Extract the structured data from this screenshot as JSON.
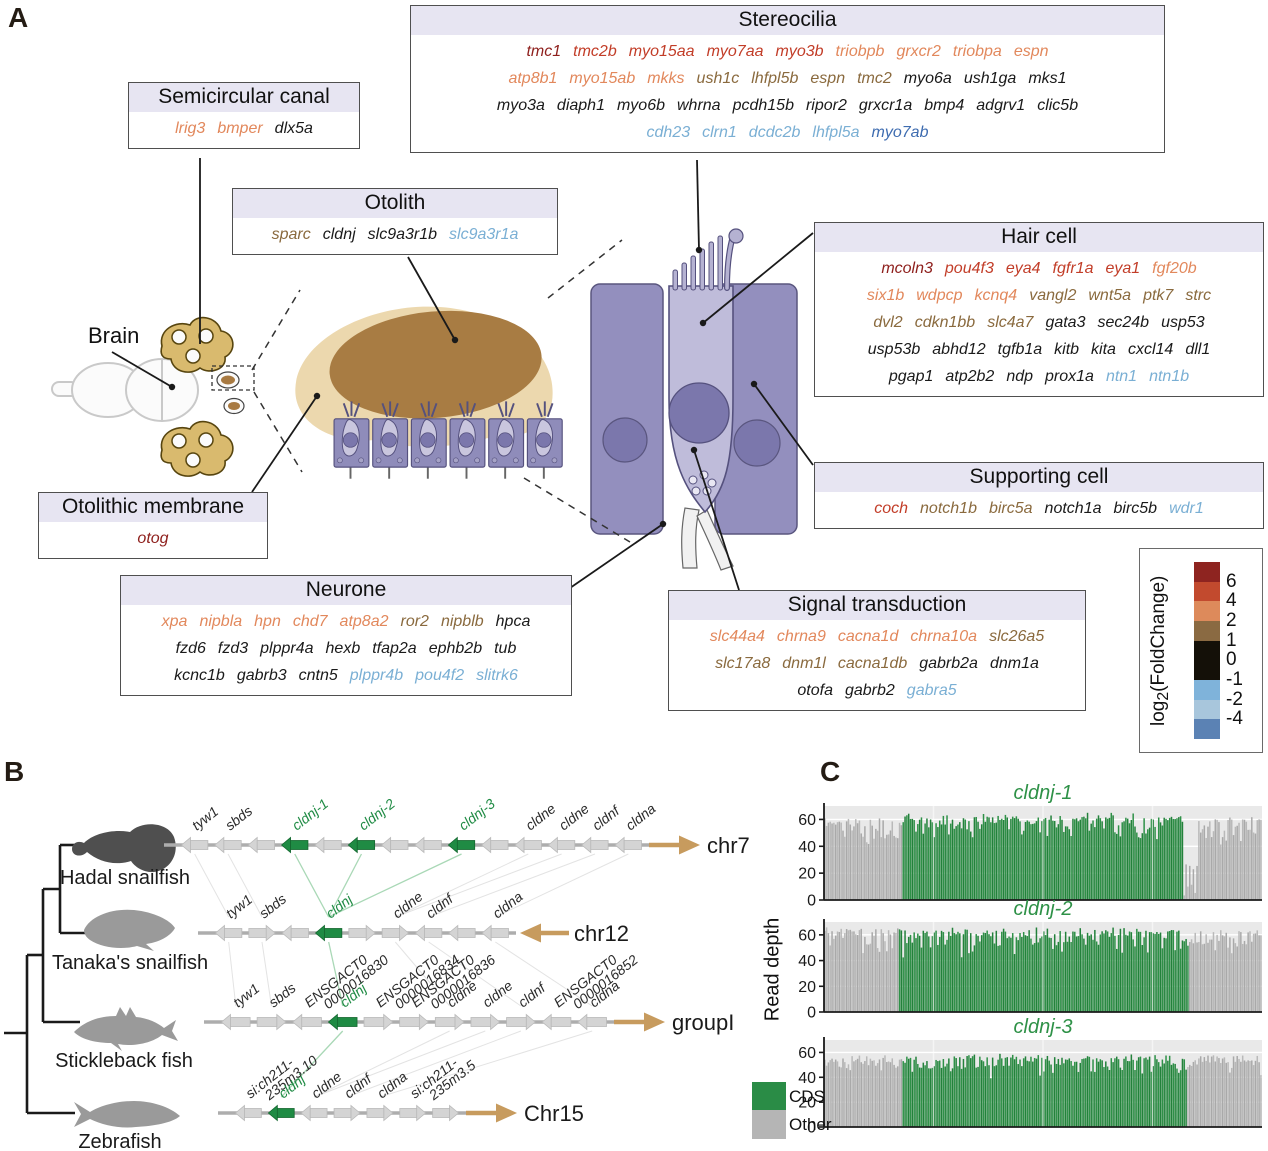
{
  "panel_a": {
    "label": "A",
    "palette": {
      "darkred": "#8e1f1c",
      "red": "#c23d28",
      "orange": "#e2885c",
      "brown": "#8a6a3e",
      "black": "#1a1a1a",
      "lightblue": "#7aafd4",
      "medblue": "#3e6cb0"
    },
    "brain_label": "Brain",
    "boxes": [
      {
        "id": "stereocilia",
        "title": "Stereocilia",
        "rows": [
          [
            [
              "tmc1",
              "darkred"
            ],
            [
              "tmc2b",
              "red"
            ],
            [
              "myo15aa",
              "red"
            ],
            [
              "myo7aa",
              "red"
            ],
            [
              "myo3b",
              "red"
            ],
            [
              "triobpb",
              "orange"
            ],
            [
              "grxcr2",
              "orange"
            ],
            [
              "triobpa",
              "orange"
            ],
            [
              "espn",
              "orange"
            ]
          ],
          [
            [
              "atp8b1",
              "orange"
            ],
            [
              "myo15ab",
              "orange"
            ],
            [
              "mkks",
              "orange"
            ],
            [
              "ush1c",
              "brown"
            ],
            [
              "lhfpl5b",
              "brown"
            ],
            [
              "espn",
              "brown"
            ],
            [
              "tmc2",
              "brown"
            ],
            [
              "myo6a",
              "black"
            ],
            [
              "ush1ga",
              "black"
            ],
            [
              "mks1",
              "black"
            ]
          ],
          [
            [
              "myo3a",
              "black"
            ],
            [
              "diaph1",
              "black"
            ],
            [
              "myo6b",
              "black"
            ],
            [
              "whrna",
              "black"
            ],
            [
              "pcdh15b",
              "black"
            ],
            [
              "ripor2",
              "black"
            ],
            [
              "grxcr1a",
              "black"
            ],
            [
              "bmp4",
              "black"
            ],
            [
              "adgrv1",
              "black"
            ],
            [
              "clic5b",
              "black"
            ]
          ],
          [
            [
              "cdh23",
              "lightblue"
            ],
            [
              "clrn1",
              "lightblue"
            ],
            [
              "dcdc2b",
              "lightblue"
            ],
            [
              "lhfpl5a",
              "lightblue"
            ],
            [
              "myo7ab",
              "medblue"
            ]
          ]
        ]
      },
      {
        "id": "semicircular",
        "title": "Semicircular canal",
        "rows": [
          [
            [
              "lrig3",
              "orange"
            ],
            [
              "bmper",
              "orange"
            ],
            [
              "dlx5a",
              "black"
            ]
          ]
        ]
      },
      {
        "id": "otolith",
        "title": "Otolith",
        "rows": [
          [
            [
              "sparc",
              "brown"
            ],
            [
              "cldnj",
              "black"
            ],
            [
              "slc9a3r1b",
              "black"
            ],
            [
              "slc9a3r1a",
              "lightblue"
            ]
          ]
        ]
      },
      {
        "id": "haircell",
        "title": "Hair cell",
        "rows": [
          [
            [
              "mcoln3",
              "darkred"
            ],
            [
              "pou4f3",
              "red"
            ],
            [
              "eya4",
              "red"
            ],
            [
              "fgfr1a",
              "red"
            ],
            [
              "eya1",
              "red"
            ],
            [
              "fgf20b",
              "orange"
            ]
          ],
          [
            [
              "six1b",
              "orange"
            ],
            [
              "wdpcp",
              "orange"
            ],
            [
              "kcnq4",
              "orange"
            ],
            [
              "vangl2",
              "brown"
            ],
            [
              "wnt5a",
              "brown"
            ],
            [
              "ptk7",
              "brown"
            ],
            [
              "strc",
              "brown"
            ]
          ],
          [
            [
              "dvl2",
              "brown"
            ],
            [
              "cdkn1bb",
              "brown"
            ],
            [
              "slc4a7",
              "brown"
            ],
            [
              "gata3",
              "black"
            ],
            [
              "sec24b",
              "black"
            ],
            [
              "usp53",
              "black"
            ]
          ],
          [
            [
              "usp53b",
              "black"
            ],
            [
              "abhd12",
              "black"
            ],
            [
              "tgfb1a",
              "black"
            ],
            [
              "kitb",
              "black"
            ],
            [
              "kita",
              "black"
            ],
            [
              "cxcl14",
              "black"
            ],
            [
              "dll1",
              "black"
            ]
          ],
          [
            [
              "pgap1",
              "black"
            ],
            [
              "atp2b2",
              "black"
            ],
            [
              "ndp",
              "black"
            ],
            [
              "prox1a",
              "black"
            ],
            [
              "ntn1",
              "lightblue"
            ],
            [
              "ntn1b",
              "lightblue"
            ]
          ]
        ]
      },
      {
        "id": "supporting",
        "title": "Supporting cell",
        "rows": [
          [
            [
              "coch",
              "red"
            ],
            [
              "notch1b",
              "brown"
            ],
            [
              "birc5a",
              "brown"
            ],
            [
              "notch1a",
              "black"
            ],
            [
              "birc5b",
              "black"
            ],
            [
              "wdr1",
              "lightblue"
            ]
          ]
        ]
      },
      {
        "id": "otolithic",
        "title": "Otolithic membrane",
        "rows": [
          [
            [
              "otog",
              "darkred"
            ]
          ]
        ]
      },
      {
        "id": "neurone",
        "title": "Neurone",
        "rows": [
          [
            [
              "xpa",
              "orange"
            ],
            [
              "nipbla",
              "orange"
            ],
            [
              "hpn",
              "orange"
            ],
            [
              "chd7",
              "orange"
            ],
            [
              "atp8a2",
              "orange"
            ],
            [
              "ror2",
              "brown"
            ],
            [
              "nipblb",
              "brown"
            ],
            [
              "hpca",
              "black"
            ]
          ],
          [
            [
              "fzd6",
              "black"
            ],
            [
              "fzd3",
              "black"
            ],
            [
              "plppr4a",
              "black"
            ],
            [
              "hexb",
              "black"
            ],
            [
              "tfap2a",
              "black"
            ],
            [
              "ephb2b",
              "black"
            ],
            [
              "tub",
              "black"
            ]
          ],
          [
            [
              "kcnc1b",
              "black"
            ],
            [
              "gabrb3",
              "black"
            ],
            [
              "cntn5",
              "black"
            ],
            [
              "plppr4b",
              "lightblue"
            ],
            [
              "pou4f2",
              "lightblue"
            ],
            [
              "slitrk6",
              "lightblue"
            ]
          ]
        ]
      },
      {
        "id": "signal",
        "title": "Signal transduction",
        "rows": [
          [
            [
              "slc44a4",
              "orange"
            ],
            [
              "chrna9",
              "orange"
            ],
            [
              "cacna1d",
              "orange"
            ],
            [
              "chrna10a",
              "orange"
            ],
            [
              "slc26a5",
              "brown"
            ]
          ],
          [
            [
              "slc17a8",
              "brown"
            ],
            [
              "dnm1l",
              "brown"
            ],
            [
              "cacna1db",
              "brown"
            ],
            [
              "gabrb2a",
              "black"
            ],
            [
              "dnm1a",
              "black"
            ]
          ],
          [
            [
              "otofa",
              "black"
            ],
            [
              "gabrb2",
              "black"
            ],
            [
              "gabra5",
              "lightblue"
            ]
          ]
        ]
      }
    ],
    "colorbar": {
      "label_prefix": "log",
      "label_sub": "2",
      "label_suffix": "(FoldChange)",
      "ticks": [
        "6",
        "4",
        "2",
        "1",
        "0",
        "-1",
        "-2",
        "-4"
      ],
      "segment_colors": [
        "#8e2420",
        "#c24a2e",
        "#dd8a5b",
        "#8a6a42",
        "#141008",
        "#7fb3da",
        "#a8c6dc",
        "#5b82b4"
      ],
      "segment_units": [
        1,
        1,
        1,
        1,
        2,
        1,
        1,
        1
      ]
    }
  },
  "panel_b": {
    "label": "B",
    "species": [
      {
        "name": "Hadal snailfish",
        "chromosome": "chr7",
        "chrom_arrow": "right"
      },
      {
        "name": "Tanaka's snailfish",
        "chromosome": "chr12",
        "chrom_arrow": "left"
      },
      {
        "name": "Stickleback fish",
        "chromosome": "groupI",
        "chrom_arrow": "right"
      },
      {
        "name": "Zebrafish",
        "chromosome": "Chr15",
        "chrom_arrow": "right"
      }
    ],
    "rows": [
      {
        "genes": [
          {
            "n": "tyw1",
            "d": "l"
          },
          {
            "n": "sbds",
            "d": "l"
          },
          {
            "d": "l"
          },
          {
            "n": "cldnj-1",
            "d": "l",
            "cds": true
          },
          {
            "d": "l"
          },
          {
            "n": "cldnj-2",
            "d": "l",
            "cds": true
          },
          {
            "d": "l"
          },
          {
            "d": "l"
          },
          {
            "n": "cldnj-3",
            "d": "l",
            "cds": true
          },
          {
            "d": "l"
          },
          {
            "n": "cldne",
            "d": "l"
          },
          {
            "n": "cldne",
            "d": "l"
          },
          {
            "n": "cldnf",
            "d": "l"
          },
          {
            "n": "cldna",
            "d": "l"
          }
        ]
      },
      {
        "genes": [
          {
            "n": "tyw1",
            "d": "l"
          },
          {
            "n": "sbds",
            "d": "r"
          },
          {
            "d": "l"
          },
          {
            "n": "cldnj",
            "d": "l",
            "cds": true
          },
          {
            "d": "r"
          },
          {
            "n": "cldne",
            "d": "r"
          },
          {
            "n": "cldnf",
            "d": "l"
          },
          {
            "d": "l"
          },
          {
            "n": "cldna",
            "d": "l"
          }
        ]
      },
      {
        "genes": [
          {
            "n": "tyw1",
            "d": "l"
          },
          {
            "n": "sbds",
            "d": "r"
          },
          {
            "n": "ENSGACT0|0000016830",
            "d": "l"
          },
          {
            "n": "cldnj",
            "d": "l",
            "cds": true
          },
          {
            "n": "ENSGACT0|0000016834",
            "d": "r"
          },
          {
            "n": "ENSGACT0|0000016836",
            "d": "r"
          },
          {
            "n": "cldne",
            "d": "r"
          },
          {
            "n": "cldne",
            "d": "r"
          },
          {
            "n": "cldnf",
            "d": "r"
          },
          {
            "n": "ENSGACT0|0000016852",
            "d": "l"
          },
          {
            "n": "cldna",
            "d": "l"
          }
        ]
      },
      {
        "genes": [
          {
            "n": "si:ch211-|235m3.10",
            "d": "l"
          },
          {
            "n": "cldnj",
            "d": "l",
            "cds": true
          },
          {
            "n": "cldne",
            "d": "l"
          },
          {
            "n": "cldnf",
            "d": "r"
          },
          {
            "n": "cldna",
            "d": "r"
          },
          {
            "n": "si:ch211-|235m3.5",
            "d": "r"
          },
          {
            "d": "r"
          }
        ]
      }
    ],
    "colors": {
      "cds_gene": "#1f8b44",
      "other_gene": "#d4d4d4",
      "chromosome_arrow": "#c79b5e"
    }
  },
  "panel_c": {
    "label": "C",
    "ylabel": "Read depth",
    "legend": [
      {
        "label": "CDS",
        "color": "#2a8c46"
      },
      {
        "label": "Other",
        "color": "#b5b5b5"
      }
    ]
  },
  "chart_data": [
    {
      "type": "bar",
      "title": "cldnj-1",
      "ylabel": "Read depth",
      "ylim": [
        0,
        70
      ],
      "yticks": [
        0,
        20,
        40,
        60
      ],
      "grid": true,
      "legend_position": "bottom-left",
      "segments": [
        {
          "class": "Other",
          "from_frac": 0.0,
          "to_frac": 0.18,
          "approx_depth_top": 62,
          "approx_depth_mean": 54
        },
        {
          "class": "CDS",
          "from_frac": 0.18,
          "to_frac": 0.82,
          "approx_depth_top": 65,
          "approx_depth_mean": 57
        },
        {
          "class": "Other",
          "from_frac": 0.82,
          "to_frac": 0.855,
          "approx_depth_top": 30,
          "approx_depth_mean": 8,
          "note": "coverage dip"
        },
        {
          "class": "Other",
          "from_frac": 0.855,
          "to_frac": 1.0,
          "approx_depth_top": 62,
          "approx_depth_mean": 54
        }
      ]
    },
    {
      "type": "bar",
      "title": "cldnj-2",
      "ylabel": "Read depth",
      "ylim": [
        0,
        70
      ],
      "yticks": [
        0,
        20,
        40,
        60
      ],
      "grid": true,
      "segments": [
        {
          "class": "Other",
          "from_frac": 0.0,
          "to_frac": 0.17,
          "approx_depth_top": 66,
          "approx_depth_mean": 57
        },
        {
          "class": "CDS",
          "from_frac": 0.17,
          "to_frac": 0.835,
          "approx_depth_top": 66,
          "approx_depth_mean": 57
        },
        {
          "class": "Other",
          "from_frac": 0.835,
          "to_frac": 1.0,
          "approx_depth_top": 65,
          "approx_depth_mean": 56
        }
      ]
    },
    {
      "type": "bar",
      "title": "cldnj-3",
      "ylabel": "Read depth",
      "ylim": [
        0,
        70
      ],
      "yticks": [
        0,
        20,
        40,
        60
      ],
      "grid": true,
      "segments": [
        {
          "class": "Other",
          "from_frac": 0.0,
          "to_frac": 0.18,
          "approx_depth_top": 58,
          "approx_depth_mean": 51
        },
        {
          "class": "CDS",
          "from_frac": 0.18,
          "to_frac": 0.83,
          "approx_depth_top": 59,
          "approx_depth_mean": 51
        },
        {
          "class": "Other",
          "from_frac": 0.83,
          "to_frac": 1.0,
          "approx_depth_top": 59,
          "approx_depth_mean": 52
        }
      ]
    }
  ]
}
